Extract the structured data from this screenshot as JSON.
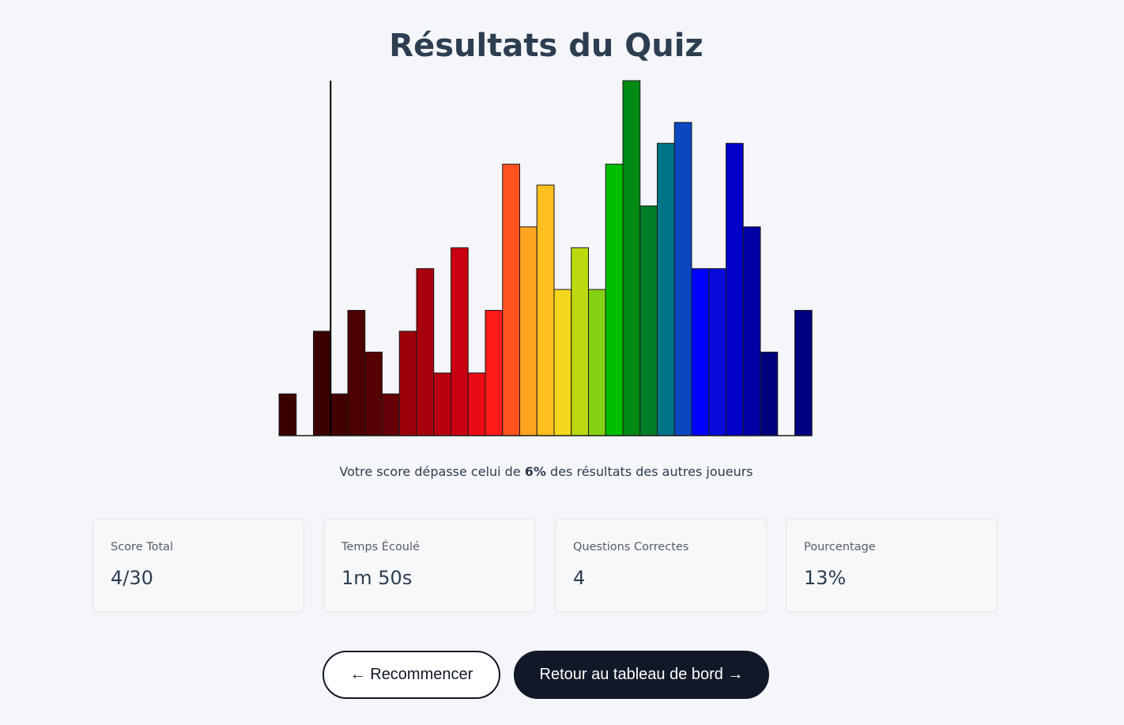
{
  "page": {
    "title": "Résultats du Quiz"
  },
  "chart_data": {
    "type": "bar",
    "title": "",
    "xlabel": "",
    "ylabel": "",
    "grid": false,
    "legend": "none",
    "marker_after_bar_index": 3,
    "ylim": [
      0,
      17
    ],
    "values": [
      2,
      0,
      5,
      2,
      6,
      4,
      2,
      5,
      8,
      3,
      9,
      3,
      6,
      13,
      10,
      12,
      7,
      9,
      7,
      13,
      17,
      11,
      14,
      15,
      8,
      8,
      14,
      10,
      4,
      0,
      6
    ],
    "colors": [
      "#3a0000",
      "#3a0000",
      "#3a0000",
      "#420000",
      "#4c0000",
      "#550003",
      "#650006",
      "#9c0009",
      "#a8000d",
      "#b8000f",
      "#c80012",
      "#ea0b15",
      "#ff1a1a",
      "#ff521f",
      "#ffa41f",
      "#ffbf1f",
      "#f3d71c",
      "#bcd80f",
      "#85d010",
      "#00bf00",
      "#008a14",
      "#007f28",
      "#00758a",
      "#0b47c0",
      "#0000ff",
      "#0a0adb",
      "#0000c8",
      "#0000a4",
      "#00007c",
      "#00007c",
      "#000080"
    ]
  },
  "summary": {
    "before": "Votre score dépasse celui de",
    "percentile": "6%",
    "after": "des résultats des autres joueurs"
  },
  "stats": [
    {
      "label": "Score Total",
      "value": "4/30"
    },
    {
      "label": "Temps Écoulé",
      "value": "1m 50s"
    },
    {
      "label": "Questions Correctes",
      "value": "4"
    },
    {
      "label": "Pourcentage",
      "value": "13%"
    }
  ],
  "actions": {
    "restart_label": "← Recommencer",
    "dashboard_label": "Retour au tableau de bord →"
  }
}
